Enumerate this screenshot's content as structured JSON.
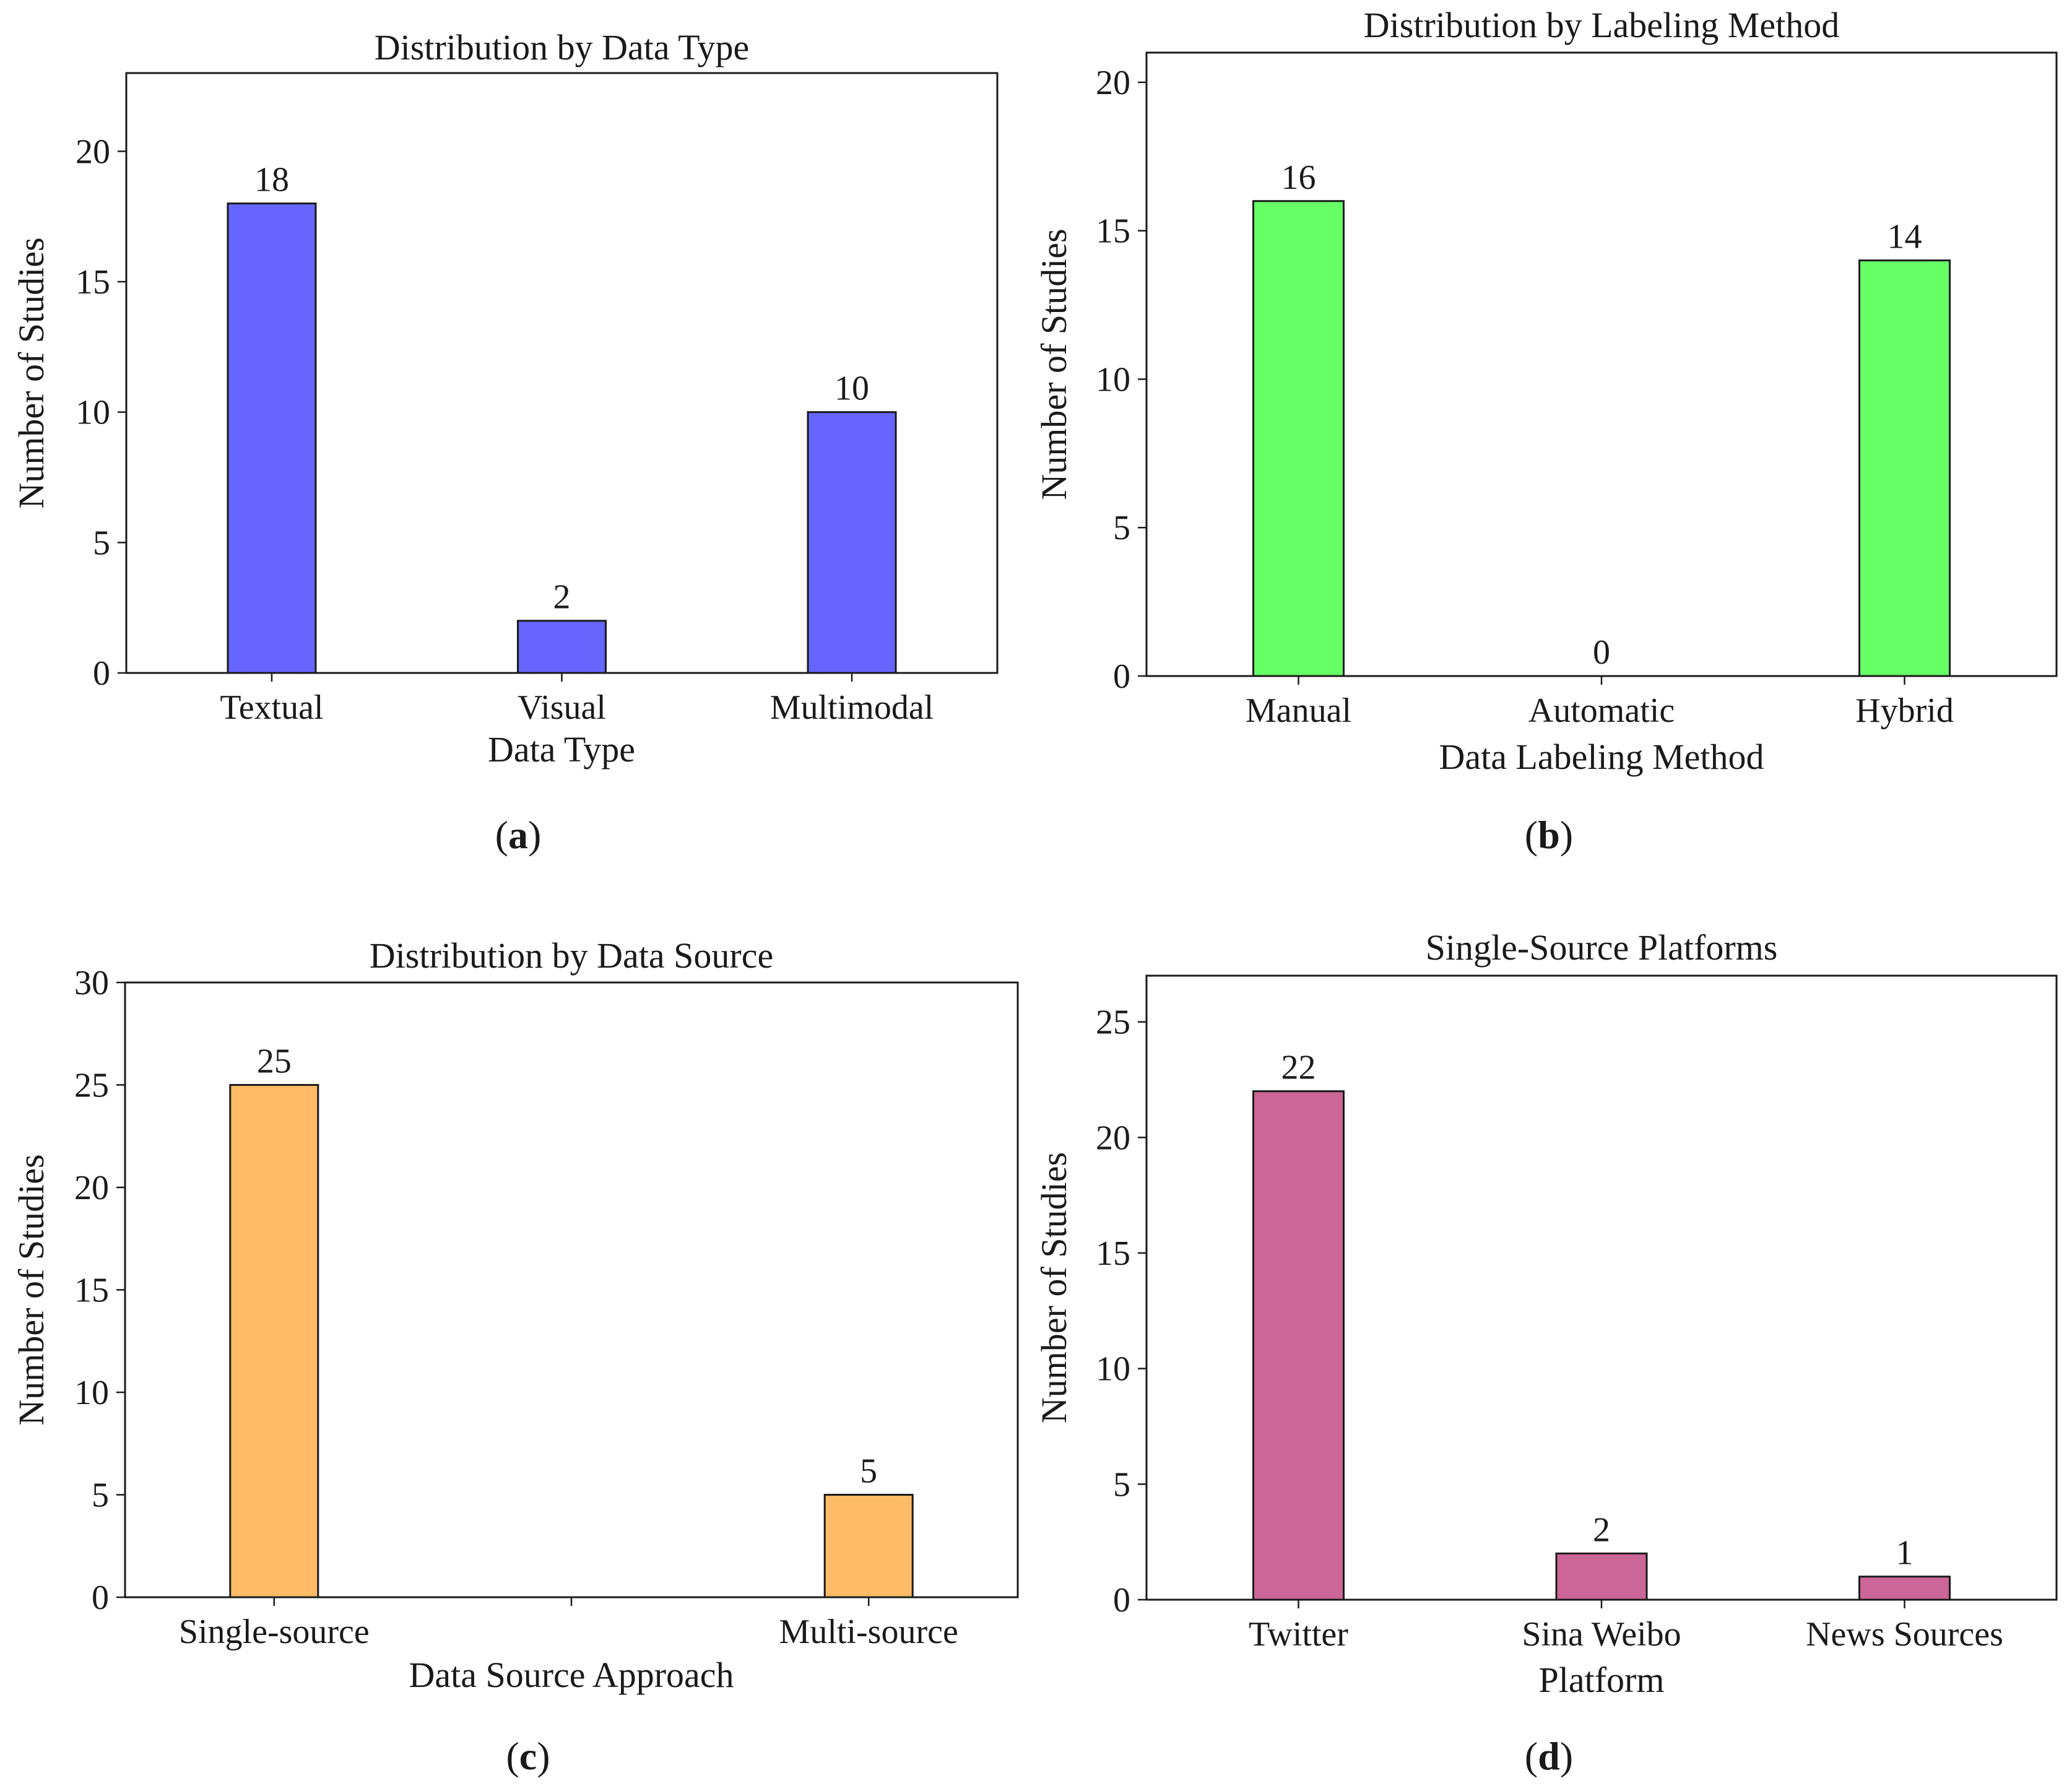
{
  "chart_data": [
    {
      "id": "a",
      "type": "bar",
      "title": "Distribution by Data Type",
      "xlabel": "Data Type",
      "ylabel": "Number of Studies",
      "categories": [
        "Textual",
        "Visual",
        "Multimodal"
      ],
      "values": [
        18,
        2,
        10
      ],
      "value_labels": [
        "18",
        "2",
        "10"
      ],
      "ylim": [
        0,
        23
      ],
      "yticks": [
        0,
        5,
        10,
        15,
        20
      ],
      "color": "#6666ff",
      "caption_letter": "a"
    },
    {
      "id": "b",
      "type": "bar",
      "title": "Distribution by Labeling Method",
      "xlabel": "Data Labeling Method",
      "ylabel": "Number of Studies",
      "categories": [
        "Manual",
        "Automatic",
        "Hybrid"
      ],
      "values": [
        16,
        0,
        14
      ],
      "value_labels": [
        "16",
        "0",
        "14"
      ],
      "ylim": [
        0,
        21
      ],
      "yticks": [
        0,
        5,
        10,
        15,
        20
      ],
      "color": "#66ff66",
      "caption_letter": "b"
    },
    {
      "id": "c",
      "type": "bar",
      "title": "Distribution by Data Source",
      "xlabel": "Data Source Approach",
      "ylabel": "Number of Studies",
      "categories": [
        "Single-source",
        "Multi-source"
      ],
      "values": [
        25,
        5
      ],
      "value_labels": [
        "25",
        "5"
      ],
      "ylim": [
        0,
        30
      ],
      "yticks": [
        0,
        5,
        10,
        15,
        20,
        25,
        30
      ],
      "color": "#ffbb66",
      "caption_letter": "c"
    },
    {
      "id": "d",
      "type": "bar",
      "title": "Single-Source Platforms",
      "xlabel": "Platform",
      "ylabel": "Number of Studies",
      "categories": [
        "Twitter",
        "Sina Weibo",
        "News Sources"
      ],
      "values": [
        22,
        2,
        1
      ],
      "value_labels": [
        "22",
        "2",
        "1"
      ],
      "ylim": [
        0,
        27
      ],
      "yticks": [
        0,
        5,
        10,
        15,
        20,
        25
      ],
      "color": "#cc6699",
      "caption_letter": "d"
    }
  ]
}
